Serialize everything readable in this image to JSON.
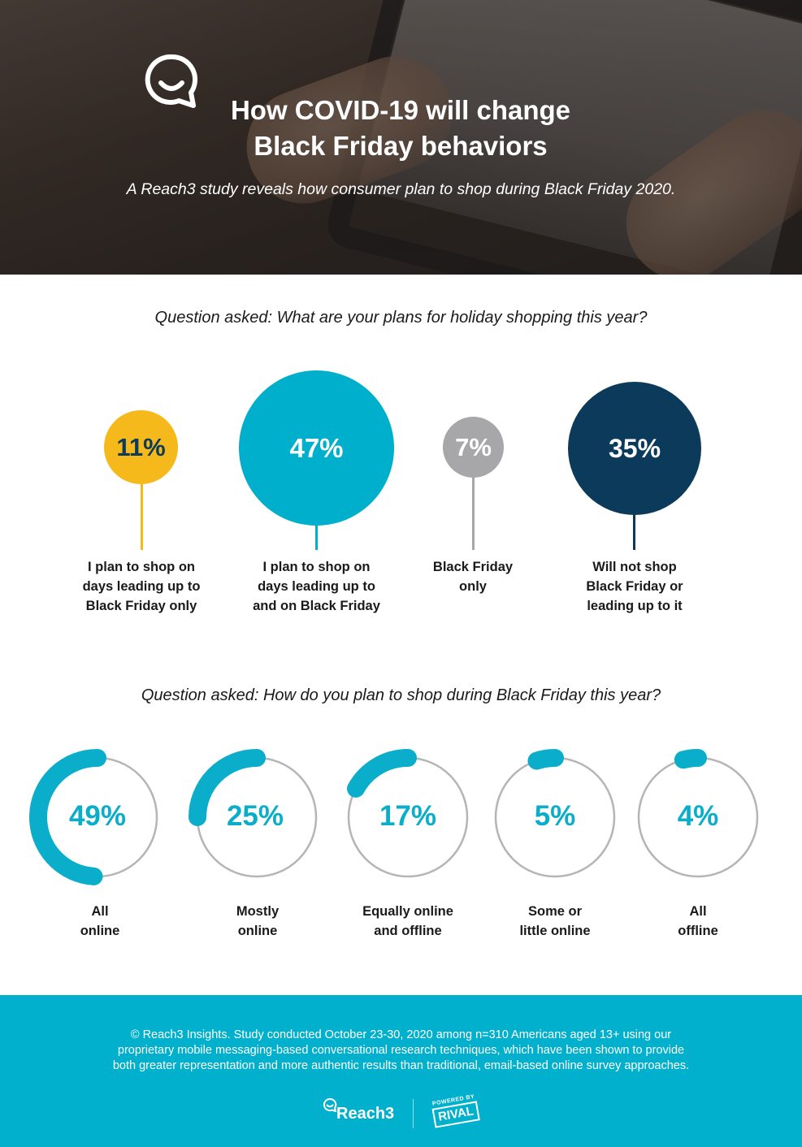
{
  "hero": {
    "title_line1": "How COVID-19 will change",
    "title_line2": "Black Friday behaviors",
    "subtitle": "A Reach3 study reveals how consumer plan to shop during Black Friday 2020."
  },
  "section1": {
    "question": "Question asked: What are your plans for holiday shopping this year?"
  },
  "section2": {
    "question": "Question asked: How do you plan to shop during Black Friday this year?"
  },
  "chart_data": [
    {
      "type": "bubble",
      "categories": [
        "I plan to shop on days leading up to Black Friday only",
        "I plan to shop on days leading up to and on Black Friday",
        "Black Friday only",
        "Will not shop Black Friday or leading up to it"
      ],
      "values": [
        11,
        47,
        7,
        35
      ],
      "value_labels": [
        "11%",
        "47%",
        "7%",
        "35%"
      ],
      "label_lines": [
        [
          "I plan to shop on",
          "days leading up to",
          "Black Friday only"
        ],
        [
          "I plan to shop on",
          "days leading up to",
          "and on Black Friday"
        ],
        [
          "Black Friday",
          "only"
        ],
        [
          "Will not shop",
          "Black Friday or",
          "leading up to it"
        ]
      ],
      "colors": [
        "#f6b91b",
        "#00afcb",
        "#a7a7a9",
        "#0b3a5a"
      ],
      "value_text_colors": [
        "#0b3a5a",
        "#ffffff",
        "#ffffff",
        "#ffffff"
      ]
    },
    {
      "type": "donut",
      "categories": [
        "All online",
        "Mostly online",
        "Equally online and offline",
        "Some or little online",
        "All offline"
      ],
      "values": [
        49,
        25,
        17,
        5,
        4
      ],
      "value_labels": [
        "49%",
        "25%",
        "17%",
        "5%",
        "4%"
      ],
      "label_lines": [
        [
          "All",
          "online"
        ],
        [
          "Mostly",
          "online"
        ],
        [
          "Equally online",
          "and offline"
        ],
        [
          "Some or",
          "little online"
        ],
        [
          "All",
          "offline"
        ]
      ],
      "colors": {
        "arc": "#0aaecb",
        "track": "#b5b5b5"
      }
    }
  ],
  "footer": {
    "line1": "© Reach3 Insights. Study conducted October 23-30, 2020 among n=310 Americans aged 13+ using our",
    "line2": "proprietary mobile messaging-based conversational research techniques, which have been shown to provide",
    "line3": "both greater representation and more authentic results than traditional, email-based online survey approaches.",
    "brand": "Reach3",
    "powered_by": "POWERED BY",
    "partner": "RIVAL"
  }
}
